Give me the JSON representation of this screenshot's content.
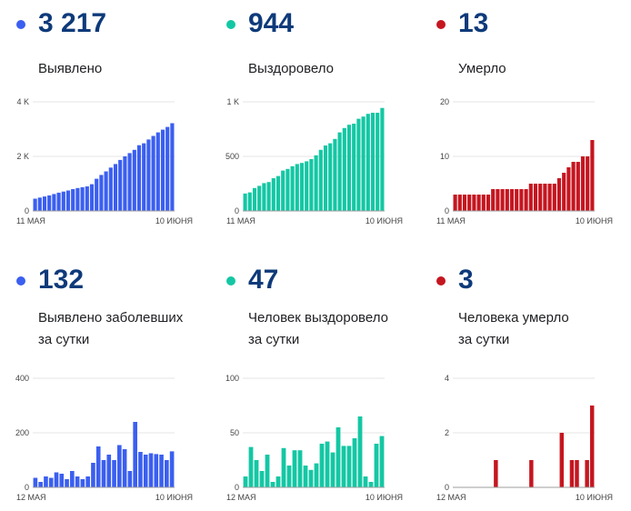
{
  "panels": [
    {
      "id": "p0",
      "big_value": "3 217",
      "label_lines": [
        "Выявлено"
      ],
      "color": "#3b5ff0"
    },
    {
      "id": "p1",
      "big_value": "944",
      "label_lines": [
        "Выздоровело"
      ],
      "color": "#14c7a4"
    },
    {
      "id": "p2",
      "big_value": "13",
      "label_lines": [
        "Умерло"
      ],
      "color": "#c51620"
    },
    {
      "id": "p3",
      "big_value": "132",
      "label_lines": [
        "Выявлено заболевших",
        "за сутки"
      ],
      "color": "#3b5ff0"
    },
    {
      "id": "p4",
      "big_value": "47",
      "label_lines": [
        "Человек выздоровело",
        "за сутки"
      ],
      "color": "#14c7a4"
    },
    {
      "id": "p5",
      "big_value": "3",
      "label_lines": [
        "Человека умерло",
        "за сутки"
      ],
      "color": "#c51620"
    }
  ],
  "chart_data": [
    {
      "type": "bar",
      "color": "#3b5ff0",
      "ylim": [
        0,
        4000
      ],
      "yticks": [
        {
          "v": 0,
          "label": "0"
        },
        {
          "v": 2000,
          "label": "2 K"
        },
        {
          "v": 4000,
          "label": "4 K"
        }
      ],
      "xlabels": [
        "11 МАЯ",
        "10 ИЮНЯ"
      ],
      "values": [
        450,
        490,
        530,
        570,
        620,
        670,
        710,
        750,
        800,
        840,
        870,
        900,
        980,
        1180,
        1320,
        1450,
        1590,
        1720,
        1870,
        2000,
        2120,
        2240,
        2410,
        2480,
        2620,
        2750,
        2880,
        2980,
        3080,
        3217
      ]
    },
    {
      "type": "bar",
      "color": "#14c7a4",
      "ylim": [
        0,
        1000
      ],
      "yticks": [
        {
          "v": 0,
          "label": "0"
        },
        {
          "v": 500,
          "label": "500"
        },
        {
          "v": 1000,
          "label": "1 K"
        }
      ],
      "xlabels": [
        "11 МАЯ",
        "10 ИЮНЯ"
      ],
      "values": [
        160,
        170,
        210,
        230,
        255,
        265,
        300,
        320,
        370,
        385,
        410,
        430,
        440,
        455,
        475,
        510,
        560,
        600,
        620,
        660,
        720,
        760,
        790,
        800,
        845,
        865,
        890,
        900,
        900,
        944
      ]
    },
    {
      "type": "bar",
      "color": "#c51620",
      "ylim": [
        0,
        20
      ],
      "yticks": [
        {
          "v": 0,
          "label": "0"
        },
        {
          "v": 10,
          "label": "10"
        },
        {
          "v": 20,
          "label": "20"
        }
      ],
      "xlabels": [
        "11 МАЯ",
        "10 ИЮНЯ"
      ],
      "values": [
        3,
        3,
        3,
        3,
        3,
        3,
        3,
        3,
        4,
        4,
        4,
        4,
        4,
        4,
        4,
        4,
        5,
        5,
        5,
        5,
        5,
        5,
        6,
        7,
        8,
        9,
        9,
        10,
        10,
        13
      ]
    },
    {
      "type": "bar",
      "color": "#3b5ff0",
      "ylim": [
        0,
        400
      ],
      "yticks": [
        {
          "v": 0,
          "label": "0"
        },
        {
          "v": 200,
          "label": "200"
        },
        {
          "v": 400,
          "label": "400"
        }
      ],
      "xlabels": [
        "12 МАЯ",
        "10 ИЮНЯ"
      ],
      "values": [
        35,
        20,
        40,
        35,
        55,
        50,
        30,
        60,
        40,
        30,
        40,
        90,
        150,
        100,
        120,
        100,
        155,
        140,
        60,
        240,
        130,
        120,
        125,
        122,
        120,
        100,
        132
      ]
    },
    {
      "type": "bar",
      "color": "#14c7a4",
      "ylim": [
        0,
        100
      ],
      "yticks": [
        {
          "v": 0,
          "label": "0"
        },
        {
          "v": 50,
          "label": "50"
        },
        {
          "v": 100,
          "label": "100"
        }
      ],
      "xlabels": [
        "12 МАЯ",
        "10 ИЮНЯ"
      ],
      "values": [
        10,
        37,
        25,
        15,
        30,
        5,
        10,
        36,
        20,
        34,
        34,
        20,
        16,
        22,
        40,
        42,
        32,
        55,
        38,
        38,
        45,
        65,
        10,
        5,
        40,
        47
      ]
    },
    {
      "type": "bar",
      "color": "#c51620",
      "ylim": [
        0,
        4
      ],
      "yticks": [
        {
          "v": 0,
          "label": "0"
        },
        {
          "v": 2,
          "label": "2"
        },
        {
          "v": 4,
          "label": "4"
        }
      ],
      "xlabels": [
        "12 МАЯ",
        "10 ИЮНЯ"
      ],
      "values": [
        0,
        0,
        0,
        0,
        0,
        0,
        0,
        0,
        1,
        0,
        0,
        0,
        0,
        0,
        0,
        1,
        0,
        0,
        0,
        0,
        0,
        2,
        0,
        1,
        1,
        0,
        1,
        3
      ]
    }
  ]
}
